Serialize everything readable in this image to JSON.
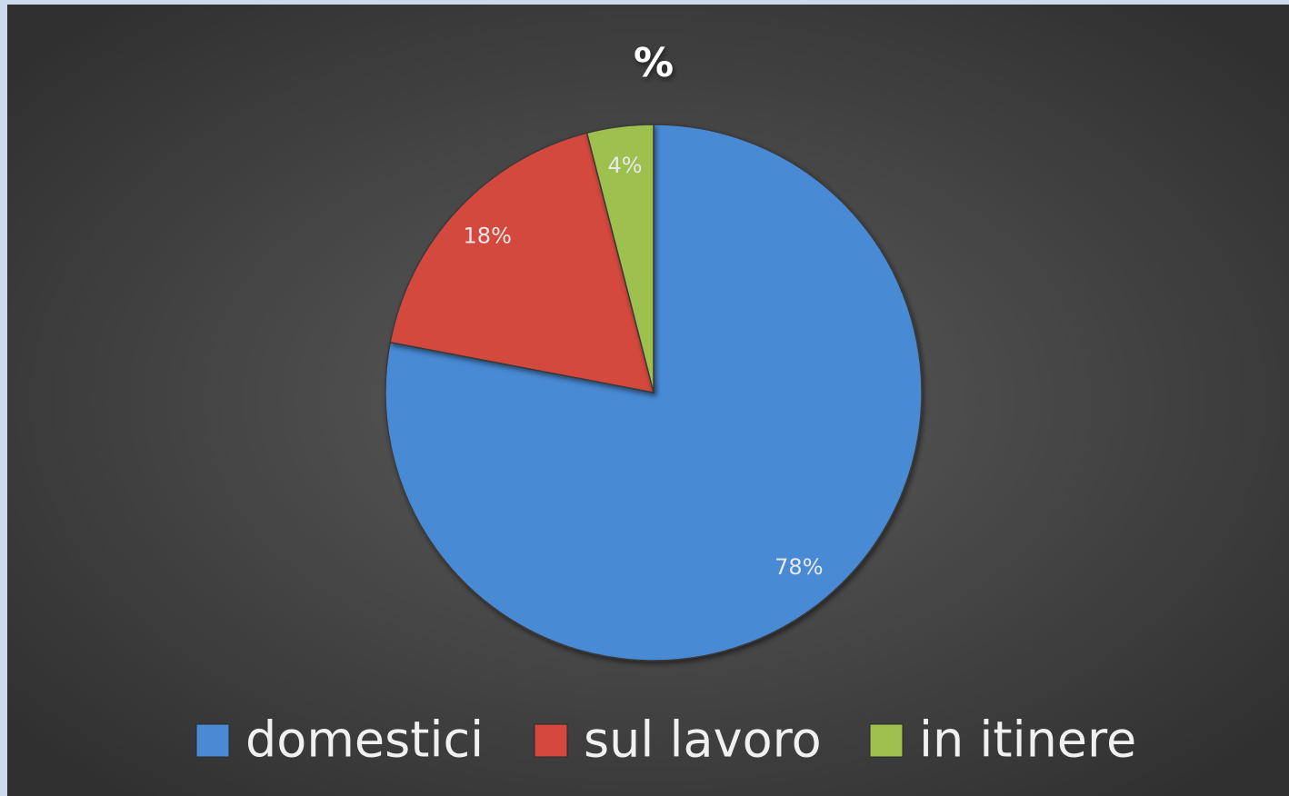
{
  "chart_data": {
    "type": "pie",
    "title": "%",
    "categories": [
      "domestici",
      "sul lavoro",
      "in itinere"
    ],
    "values": [
      78,
      18,
      4
    ],
    "value_labels": [
      "78%",
      "18%",
      "4%"
    ],
    "colors": [
      "#4a8ad4",
      "#d4483e",
      "#9dc04f"
    ],
    "legend": "bottom"
  }
}
